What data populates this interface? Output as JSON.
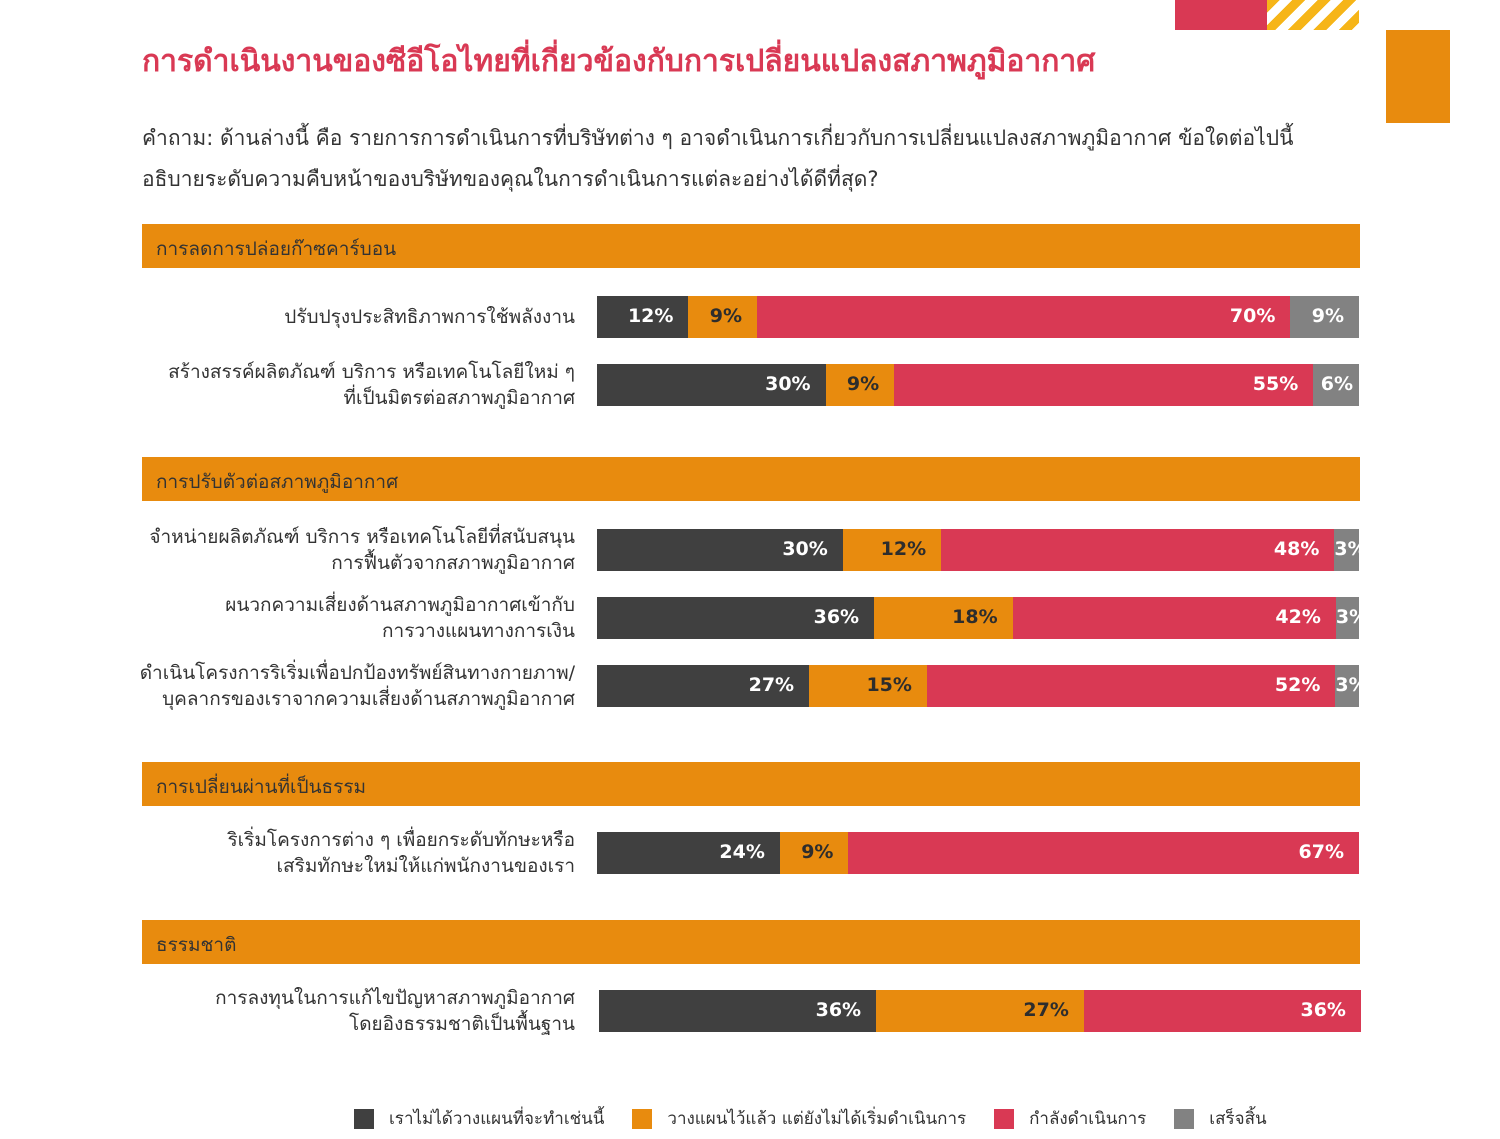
{
  "header": {
    "title": "การดำเนินงานของซีอีโอไทยที่เกี่ยวข้องกับการเปลี่ยนแปลงสภาพภูมิอากาศ",
    "question_line1": "คำถาม: ด้านล่างนี้ คือ รายการการดำเนินการที่บริษัทต่าง ๆ อาจดำเนินการเกี่ยวกับการเปลี่ยนแปลงสภาพภูมิอากาศ ข้อใดต่อไปนี้",
    "question_line2": "อธิบายระดับความคืบหน้าของบริษัทของคุณในการดำเนินการแต่ละอย่างได้ดีที่สุด?"
  },
  "colors": {
    "accent_pink": "#d93954",
    "accent_orange": "#e88b0e",
    "accent_yellow": "#f6b518",
    "dark_gray": "#404040",
    "mid_gray": "#828282"
  },
  "chart_data": {
    "type": "bar",
    "orientation": "horizontal",
    "stacked": true,
    "normalized_percent": true,
    "title": "การดำเนินงานของซีอีโอไทยที่เกี่ยวข้องกับการเปลี่ยนแปลงสภาพภูมิอากาศ",
    "series_names": [
      "เราไม่ได้วางแผนที่จะทำเช่นนี้",
      "วางแผนไว้แล้ว แต่ยังไม่ได้เริ่มดำเนินการ",
      "กำลังดำเนินการ",
      "เสร็จสิ้น"
    ],
    "series_colors": [
      "#404040",
      "#e88b0e",
      "#d93954",
      "#828282"
    ],
    "legend_position": "bottom",
    "sections": [
      {
        "title": "การลดการปล่อยก๊าซคาร์บอน",
        "rows": [
          {
            "label": [
              "ปรับปรุงประสิทธิภาพการใช้พลังงาน"
            ],
            "values": [
              12,
              9,
              70,
              9
            ],
            "labels": [
              "12%",
              "9%",
              "70%",
              "9%"
            ]
          },
          {
            "label": [
              "สร้างสรรค์ผลิตภัณฑ์ บริการ หรือเทคโนโลยีใหม่ ๆ",
              "ที่เป็นมิตรต่อสภาพภูมิอากาศ"
            ],
            "values": [
              30,
              9,
              55,
              6
            ],
            "labels": [
              "30%",
              "9%",
              "55%",
              "6%"
            ]
          }
        ]
      },
      {
        "title": "การปรับตัวต่อสภาพภูมิอากาศ",
        "rows": [
          {
            "label": [
              "จำหน่ายผลิตภัณฑ์ บริการ หรือเทคโนโลยีที่สนับสนุน",
              "การฟื้นตัวจากสภาพภูมิอากาศ"
            ],
            "values": [
              30,
              12,
              48,
              3
            ],
            "labels": [
              "30%",
              "12%",
              "48%",
              "3%"
            ]
          },
          {
            "label": [
              "ผนวกความเสี่ยงด้านสภาพภูมิอากาศเข้ากับ",
              "การวางแผนทางการเงิน"
            ],
            "values": [
              36,
              18,
              42,
              3
            ],
            "labels": [
              "36%",
              "18%",
              "42%",
              "3%"
            ]
          },
          {
            "label": [
              "ดำเนินโครงการริเริ่มเพื่อปกป้องทรัพย์สินทางกายภาพ/",
              "บุคลากรของเราจากความเสี่ยงด้านสภาพภูมิอากาศ"
            ],
            "values": [
              27,
              15,
              52,
              3
            ],
            "labels": [
              "27%",
              "15%",
              "52%",
              "3%"
            ]
          }
        ]
      },
      {
        "title": "การเปลี่ยนผ่านที่เป็นธรรม",
        "rows": [
          {
            "label": [
              "ริเริ่มโครงการต่าง ๆ เพื่อยกระดับทักษะหรือ",
              "เสริมทักษะใหม่ให้แก่พนักงานของเรา"
            ],
            "values": [
              24,
              9,
              67
            ],
            "labels": [
              "24%",
              "9%",
              "67%"
            ]
          }
        ]
      },
      {
        "title": "ธรรมชาติ",
        "rows": [
          {
            "label": [
              "การลงทุนในการแก้ไขปัญหาสภาพภูมิอากาศ",
              "โดยอิงธรรมชาติเป็นพื้นฐาน"
            ],
            "values": [
              36,
              27,
              36
            ],
            "labels": [
              "36%",
              "27%",
              "36%"
            ]
          }
        ]
      }
    ]
  }
}
